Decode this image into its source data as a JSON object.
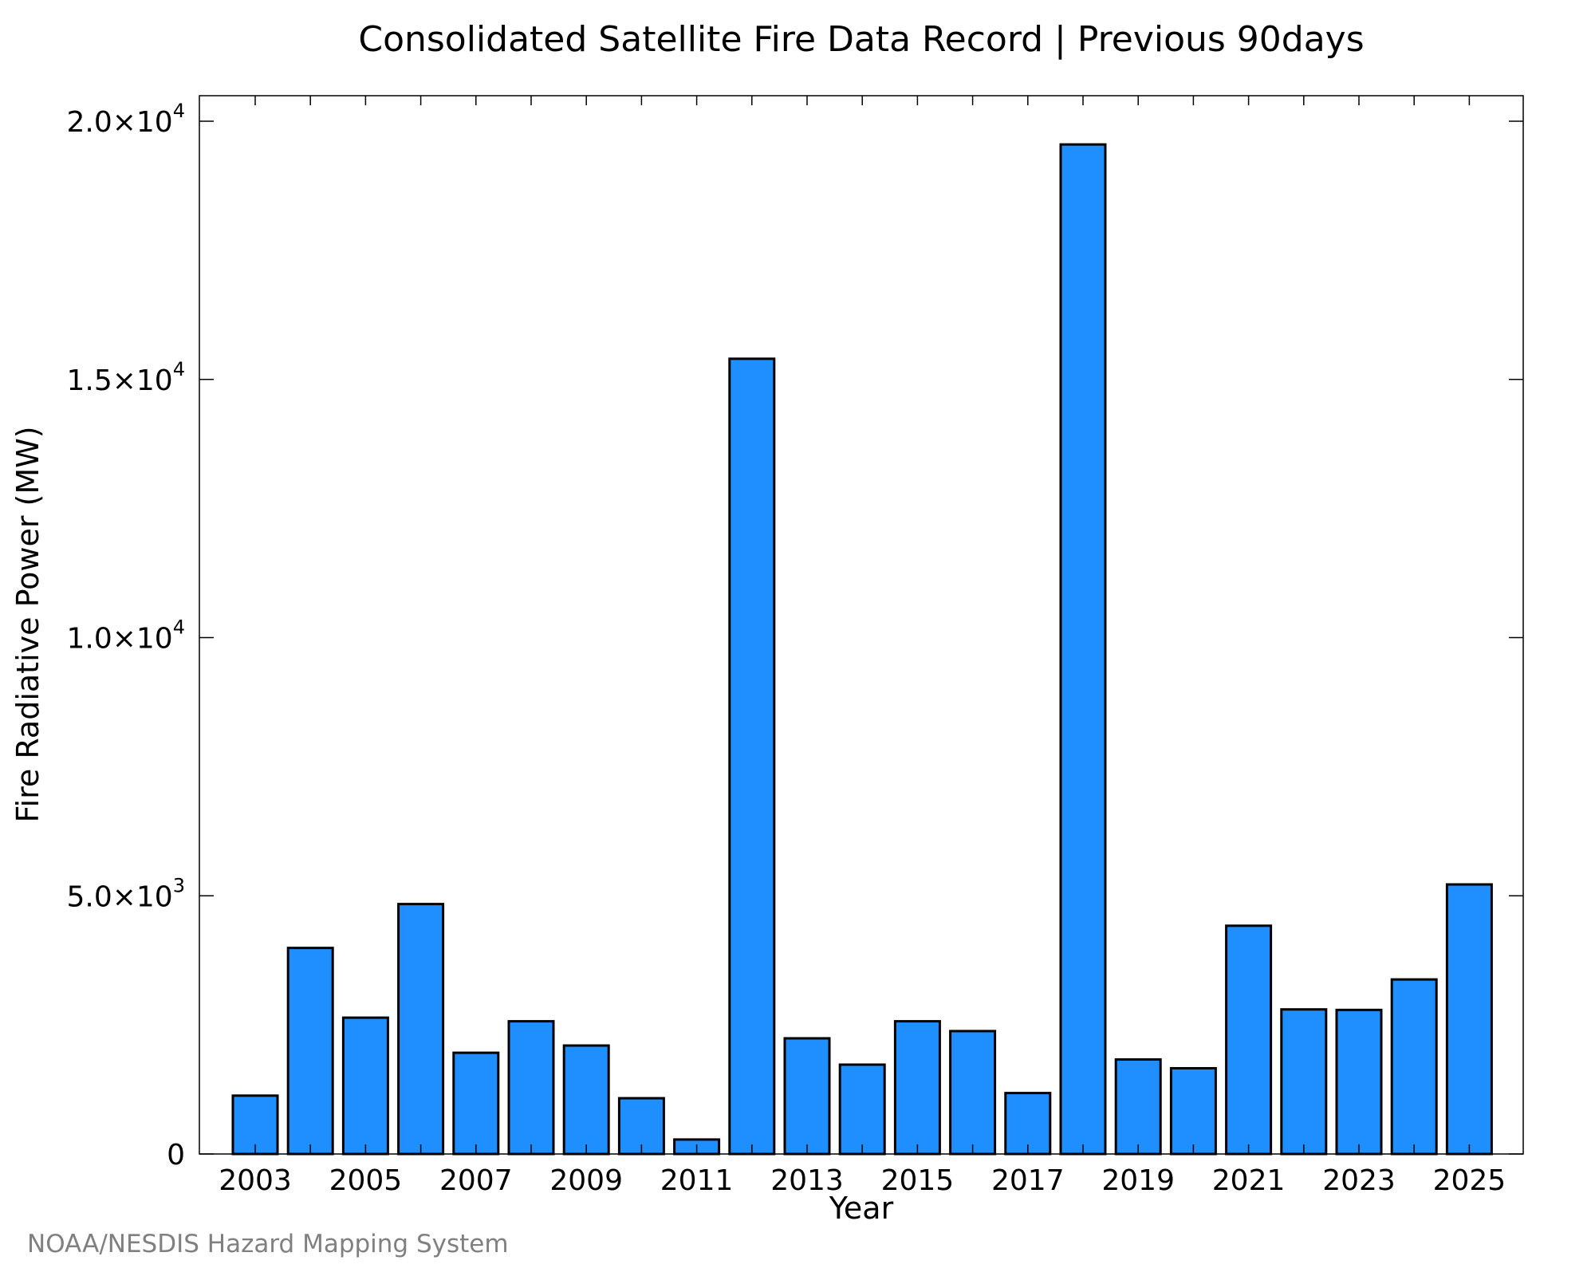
{
  "chart_data": {
    "type": "bar",
    "title": "Consolidated Satellite Fire Data Record | Previous 90days",
    "xlabel": "Year",
    "ylabel": "Fire Radiative Power (MW)",
    "categories": [
      "2003",
      "2004",
      "2005",
      "2006",
      "2007",
      "2008",
      "2009",
      "2010",
      "2011",
      "2012",
      "2013",
      "2014",
      "2015",
      "2016",
      "2017",
      "2018",
      "2019",
      "2020",
      "2021",
      "2022",
      "2023",
      "2024",
      "2025"
    ],
    "values": [
      1130,
      3990,
      2640,
      4840,
      1960,
      2570,
      2100,
      1080,
      280,
      15400,
      2240,
      1730,
      2570,
      2380,
      1180,
      19550,
      1830,
      1660,
      4420,
      2800,
      2790,
      3380,
      5220
    ],
    "x_ticks": [
      "2003",
      "2005",
      "2007",
      "2009",
      "2011",
      "2013",
      "2015",
      "2017",
      "2019",
      "2021",
      "2023",
      "2025"
    ],
    "y_ticks": [
      {
        "value": 0,
        "mantissa": "0",
        "exponent": ""
      },
      {
        "value": 5000,
        "mantissa": "5.0×10",
        "exponent": "3"
      },
      {
        "value": 10000,
        "mantissa": "1.0×10",
        "exponent": "4"
      },
      {
        "value": 15000,
        "mantissa": "1.5×10",
        "exponent": "4"
      },
      {
        "value": 20000,
        "mantissa": "2.0×10",
        "exponent": "4"
      }
    ],
    "ylim": [
      0,
      20500
    ],
    "grid": false,
    "legend": "none",
    "bar_color": "#1f8fff",
    "bar_edge_color": "#000000"
  },
  "credit": "NOAA/NESDIS Hazard Mapping System"
}
